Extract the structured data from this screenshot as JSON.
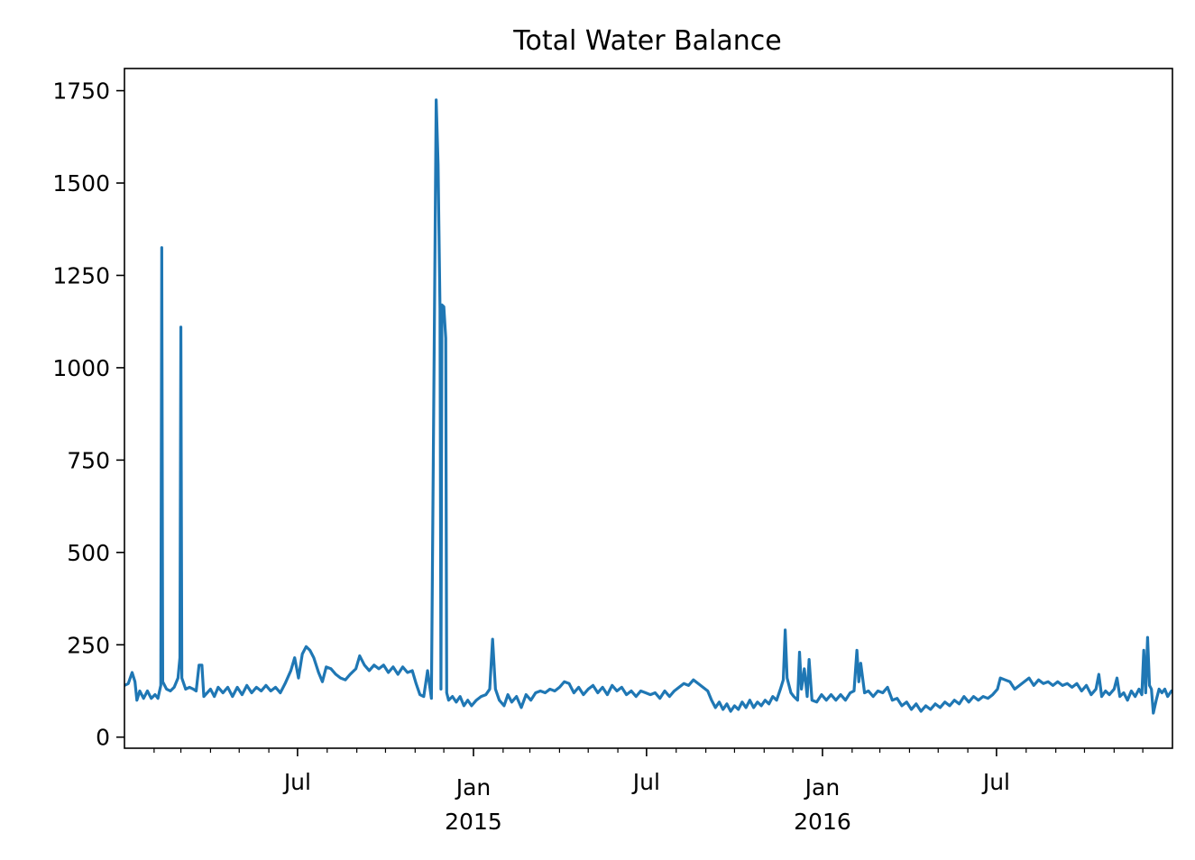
{
  "chart_data": {
    "type": "line",
    "title": "Total Water Balance",
    "xlabel": "",
    "ylabel": "",
    "xlim": [
      "2014-01-01",
      "2016-12-31"
    ],
    "ylim": [
      -30,
      1810
    ],
    "grid": false,
    "line_color": "#1f77b4",
    "y_ticks": [
      0,
      250,
      500,
      750,
      1000,
      1250,
      1500,
      1750
    ],
    "x_major_ticks": [
      {
        "date": "2014-07-01",
        "label": "Jul",
        "year": ""
      },
      {
        "date": "2015-01-01",
        "label": "Jan",
        "year": "2015"
      },
      {
        "date": "2015-07-01",
        "label": "Jul",
        "year": ""
      },
      {
        "date": "2016-01-01",
        "label": "Jan",
        "year": "2016"
      },
      {
        "date": "2016-07-01",
        "label": "Jul",
        "year": ""
      }
    ],
    "x_minor_ticks": [
      "2014-02-01",
      "2014-03-01",
      "2014-04-01",
      "2014-05-01",
      "2014-06-01",
      "2014-08-01",
      "2014-09-01",
      "2014-10-01",
      "2014-11-01",
      "2014-12-01",
      "2015-02-01",
      "2015-03-01",
      "2015-04-01",
      "2015-05-01",
      "2015-06-01",
      "2015-08-01",
      "2015-09-01",
      "2015-10-01",
      "2015-11-01",
      "2015-12-01",
      "2016-02-01",
      "2016-03-01",
      "2016-04-01",
      "2016-05-01",
      "2016-06-01",
      "2016-08-01",
      "2016-09-01",
      "2016-10-01",
      "2016-11-01",
      "2016-12-01"
    ],
    "series": [
      {
        "points": [
          [
            "2014-01-01",
            140
          ],
          [
            "2014-01-05",
            145
          ],
          [
            "2014-01-09",
            175
          ],
          [
            "2014-01-12",
            150
          ],
          [
            "2014-01-14",
            100
          ],
          [
            "2014-01-17",
            125
          ],
          [
            "2014-01-21",
            105
          ],
          [
            "2014-01-25",
            125
          ],
          [
            "2014-01-29",
            105
          ],
          [
            "2014-02-02",
            115
          ],
          [
            "2014-02-05",
            105
          ],
          [
            "2014-02-08",
            140
          ],
          [
            "2014-02-09",
            1325
          ],
          [
            "2014-02-10",
            150
          ],
          [
            "2014-02-14",
            130
          ],
          [
            "2014-02-18",
            125
          ],
          [
            "2014-02-22",
            135
          ],
          [
            "2014-02-26",
            160
          ],
          [
            "2014-02-28",
            215
          ],
          [
            "2014-03-01",
            1110
          ],
          [
            "2014-03-02",
            160
          ],
          [
            "2014-03-06",
            130
          ],
          [
            "2014-03-10",
            135
          ],
          [
            "2014-03-14",
            130
          ],
          [
            "2014-03-17",
            125
          ],
          [
            "2014-03-20",
            195
          ],
          [
            "2014-03-23",
            195
          ],
          [
            "2014-03-25",
            110
          ],
          [
            "2014-04-01",
            130
          ],
          [
            "2014-04-05",
            110
          ],
          [
            "2014-04-09",
            135
          ],
          [
            "2014-04-14",
            120
          ],
          [
            "2014-04-19",
            135
          ],
          [
            "2014-04-24",
            110
          ],
          [
            "2014-04-29",
            135
          ],
          [
            "2014-05-04",
            115
          ],
          [
            "2014-05-09",
            140
          ],
          [
            "2014-05-14",
            120
          ],
          [
            "2014-05-19",
            135
          ],
          [
            "2014-05-24",
            125
          ],
          [
            "2014-05-29",
            140
          ],
          [
            "2014-06-03",
            125
          ],
          [
            "2014-06-08",
            135
          ],
          [
            "2014-06-13",
            120
          ],
          [
            "2014-06-18",
            145
          ],
          [
            "2014-06-24",
            180
          ],
          [
            "2014-06-28",
            215
          ],
          [
            "2014-07-02",
            160
          ],
          [
            "2014-07-06",
            225
          ],
          [
            "2014-07-10",
            245
          ],
          [
            "2014-07-14",
            235
          ],
          [
            "2014-07-18",
            215
          ],
          [
            "2014-07-23",
            175
          ],
          [
            "2014-07-27",
            150
          ],
          [
            "2014-07-31",
            190
          ],
          [
            "2014-08-05",
            185
          ],
          [
            "2014-08-10",
            170
          ],
          [
            "2014-08-15",
            160
          ],
          [
            "2014-08-20",
            155
          ],
          [
            "2014-08-25",
            170
          ],
          [
            "2014-08-31",
            185
          ],
          [
            "2014-09-04",
            220
          ],
          [
            "2014-09-09",
            195
          ],
          [
            "2014-09-14",
            180
          ],
          [
            "2014-09-19",
            195
          ],
          [
            "2014-09-24",
            185
          ],
          [
            "2014-09-29",
            195
          ],
          [
            "2014-10-04",
            175
          ],
          [
            "2014-10-09",
            190
          ],
          [
            "2014-10-14",
            170
          ],
          [
            "2014-10-19",
            190
          ],
          [
            "2014-10-24",
            175
          ],
          [
            "2014-10-29",
            180
          ],
          [
            "2014-11-02",
            145
          ],
          [
            "2014-11-06",
            115
          ],
          [
            "2014-11-10",
            110
          ],
          [
            "2014-11-14",
            180
          ],
          [
            "2014-11-18",
            105
          ],
          [
            "2014-11-23",
            1725
          ],
          [
            "2014-11-25",
            1550
          ],
          [
            "2014-11-27",
            1160
          ],
          [
            "2014-11-28",
            130
          ],
          [
            "2014-11-29",
            1170
          ],
          [
            "2014-12-01",
            1165
          ],
          [
            "2014-12-03",
            1080
          ],
          [
            "2014-12-04",
            120
          ],
          [
            "2014-12-06",
            100
          ],
          [
            "2014-12-10",
            110
          ],
          [
            "2014-12-14",
            95
          ],
          [
            "2014-12-18",
            110
          ],
          [
            "2014-12-22",
            85
          ],
          [
            "2014-12-26",
            100
          ],
          [
            "2014-12-30",
            85
          ],
          [
            "2015-01-04",
            100
          ],
          [
            "2015-01-09",
            110
          ],
          [
            "2015-01-14",
            115
          ],
          [
            "2015-01-18",
            130
          ],
          [
            "2015-01-21",
            265
          ],
          [
            "2015-01-24",
            130
          ],
          [
            "2015-01-28",
            100
          ],
          [
            "2015-02-02",
            85
          ],
          [
            "2015-02-06",
            115
          ],
          [
            "2015-02-10",
            95
          ],
          [
            "2015-02-15",
            110
          ],
          [
            "2015-02-20",
            80
          ],
          [
            "2015-02-25",
            115
          ],
          [
            "2015-03-02",
            100
          ],
          [
            "2015-03-07",
            120
          ],
          [
            "2015-03-12",
            125
          ],
          [
            "2015-03-17",
            120
          ],
          [
            "2015-03-22",
            130
          ],
          [
            "2015-03-27",
            125
          ],
          [
            "2015-04-01",
            135
          ],
          [
            "2015-04-06",
            150
          ],
          [
            "2015-04-11",
            145
          ],
          [
            "2015-04-16",
            120
          ],
          [
            "2015-04-21",
            135
          ],
          [
            "2015-04-26",
            115
          ],
          [
            "2015-05-01",
            130
          ],
          [
            "2015-05-06",
            140
          ],
          [
            "2015-05-11",
            120
          ],
          [
            "2015-05-16",
            135
          ],
          [
            "2015-05-21",
            115
          ],
          [
            "2015-05-26",
            140
          ],
          [
            "2015-05-31",
            125
          ],
          [
            "2015-06-05",
            135
          ],
          [
            "2015-06-10",
            115
          ],
          [
            "2015-06-15",
            125
          ],
          [
            "2015-06-20",
            110
          ],
          [
            "2015-06-25",
            125
          ],
          [
            "2015-06-30",
            120
          ],
          [
            "2015-07-05",
            115
          ],
          [
            "2015-07-10",
            120
          ],
          [
            "2015-07-15",
            105
          ],
          [
            "2015-07-20",
            125
          ],
          [
            "2015-07-25",
            110
          ],
          [
            "2015-07-30",
            125
          ],
          [
            "2015-08-04",
            135
          ],
          [
            "2015-08-09",
            145
          ],
          [
            "2015-08-14",
            140
          ],
          [
            "2015-08-19",
            155
          ],
          [
            "2015-08-24",
            145
          ],
          [
            "2015-08-29",
            135
          ],
          [
            "2015-09-03",
            125
          ],
          [
            "2015-09-07",
            100
          ],
          [
            "2015-09-11",
            80
          ],
          [
            "2015-09-15",
            95
          ],
          [
            "2015-09-19",
            75
          ],
          [
            "2015-09-23",
            90
          ],
          [
            "2015-09-27",
            70
          ],
          [
            "2015-10-01",
            85
          ],
          [
            "2015-10-05",
            75
          ],
          [
            "2015-10-09",
            95
          ],
          [
            "2015-10-13",
            80
          ],
          [
            "2015-10-17",
            100
          ],
          [
            "2015-10-21",
            80
          ],
          [
            "2015-10-25",
            95
          ],
          [
            "2015-10-29",
            85
          ],
          [
            "2015-11-02",
            100
          ],
          [
            "2015-11-06",
            90
          ],
          [
            "2015-11-10",
            110
          ],
          [
            "2015-11-14",
            100
          ],
          [
            "2015-11-18",
            130
          ],
          [
            "2015-11-21",
            155
          ],
          [
            "2015-11-23",
            290
          ],
          [
            "2015-11-25",
            160
          ],
          [
            "2015-11-29",
            120
          ],
          [
            "2015-12-02",
            110
          ],
          [
            "2015-12-06",
            100
          ],
          [
            "2015-12-08",
            230
          ],
          [
            "2015-12-10",
            130
          ],
          [
            "2015-12-13",
            185
          ],
          [
            "2015-12-16",
            110
          ],
          [
            "2015-12-18",
            210
          ],
          [
            "2015-12-21",
            100
          ],
          [
            "2015-12-26",
            95
          ],
          [
            "2015-12-31",
            115
          ],
          [
            "2016-01-05",
            100
          ],
          [
            "2016-01-10",
            115
          ],
          [
            "2016-01-15",
            100
          ],
          [
            "2016-01-20",
            115
          ],
          [
            "2016-01-25",
            100
          ],
          [
            "2016-01-30",
            120
          ],
          [
            "2016-02-03",
            125
          ],
          [
            "2016-02-06",
            235
          ],
          [
            "2016-02-08",
            150
          ],
          [
            "2016-02-10",
            200
          ],
          [
            "2016-02-14",
            120
          ],
          [
            "2016-02-18",
            125
          ],
          [
            "2016-02-23",
            110
          ],
          [
            "2016-02-28",
            125
          ],
          [
            "2016-03-04",
            120
          ],
          [
            "2016-03-09",
            135
          ],
          [
            "2016-03-14",
            100
          ],
          [
            "2016-03-19",
            105
          ],
          [
            "2016-03-24",
            85
          ],
          [
            "2016-03-29",
            95
          ],
          [
            "2016-04-03",
            75
          ],
          [
            "2016-04-08",
            90
          ],
          [
            "2016-04-13",
            70
          ],
          [
            "2016-04-18",
            85
          ],
          [
            "2016-04-23",
            75
          ],
          [
            "2016-04-28",
            90
          ],
          [
            "2016-05-03",
            80
          ],
          [
            "2016-05-08",
            95
          ],
          [
            "2016-05-13",
            85
          ],
          [
            "2016-05-18",
            100
          ],
          [
            "2016-05-23",
            90
          ],
          [
            "2016-05-28",
            110
          ],
          [
            "2016-06-02",
            95
          ],
          [
            "2016-06-07",
            110
          ],
          [
            "2016-06-12",
            100
          ],
          [
            "2016-06-17",
            110
          ],
          [
            "2016-06-22",
            105
          ],
          [
            "2016-06-27",
            115
          ],
          [
            "2016-07-02",
            130
          ],
          [
            "2016-07-05",
            160
          ],
          [
            "2016-07-10",
            155
          ],
          [
            "2016-07-15",
            150
          ],
          [
            "2016-07-20",
            130
          ],
          [
            "2016-07-25",
            140
          ],
          [
            "2016-07-30",
            150
          ],
          [
            "2016-08-04",
            160
          ],
          [
            "2016-08-09",
            140
          ],
          [
            "2016-08-14",
            155
          ],
          [
            "2016-08-19",
            145
          ],
          [
            "2016-08-24",
            150
          ],
          [
            "2016-08-29",
            140
          ],
          [
            "2016-09-03",
            150
          ],
          [
            "2016-09-08",
            140
          ],
          [
            "2016-09-13",
            145
          ],
          [
            "2016-09-18",
            135
          ],
          [
            "2016-09-23",
            145
          ],
          [
            "2016-09-28",
            125
          ],
          [
            "2016-10-03",
            140
          ],
          [
            "2016-10-08",
            115
          ],
          [
            "2016-10-13",
            130
          ],
          [
            "2016-10-16",
            170
          ],
          [
            "2016-10-19",
            110
          ],
          [
            "2016-10-23",
            125
          ],
          [
            "2016-10-27",
            115
          ],
          [
            "2016-11-01",
            130
          ],
          [
            "2016-11-04",
            160
          ],
          [
            "2016-11-07",
            110
          ],
          [
            "2016-11-11",
            120
          ],
          [
            "2016-11-15",
            100
          ],
          [
            "2016-11-19",
            125
          ],
          [
            "2016-11-23",
            110
          ],
          [
            "2016-11-27",
            130
          ],
          [
            "2016-11-30",
            115
          ],
          [
            "2016-12-02",
            235
          ],
          [
            "2016-12-04",
            120
          ],
          [
            "2016-12-06",
            270
          ],
          [
            "2016-12-08",
            140
          ],
          [
            "2016-12-10",
            130
          ],
          [
            "2016-12-12",
            65
          ],
          [
            "2016-12-15",
            100
          ],
          [
            "2016-12-18",
            130
          ],
          [
            "2016-12-21",
            120
          ],
          [
            "2016-12-24",
            130
          ],
          [
            "2016-12-27",
            110
          ],
          [
            "2016-12-31",
            125
          ]
        ]
      }
    ]
  }
}
